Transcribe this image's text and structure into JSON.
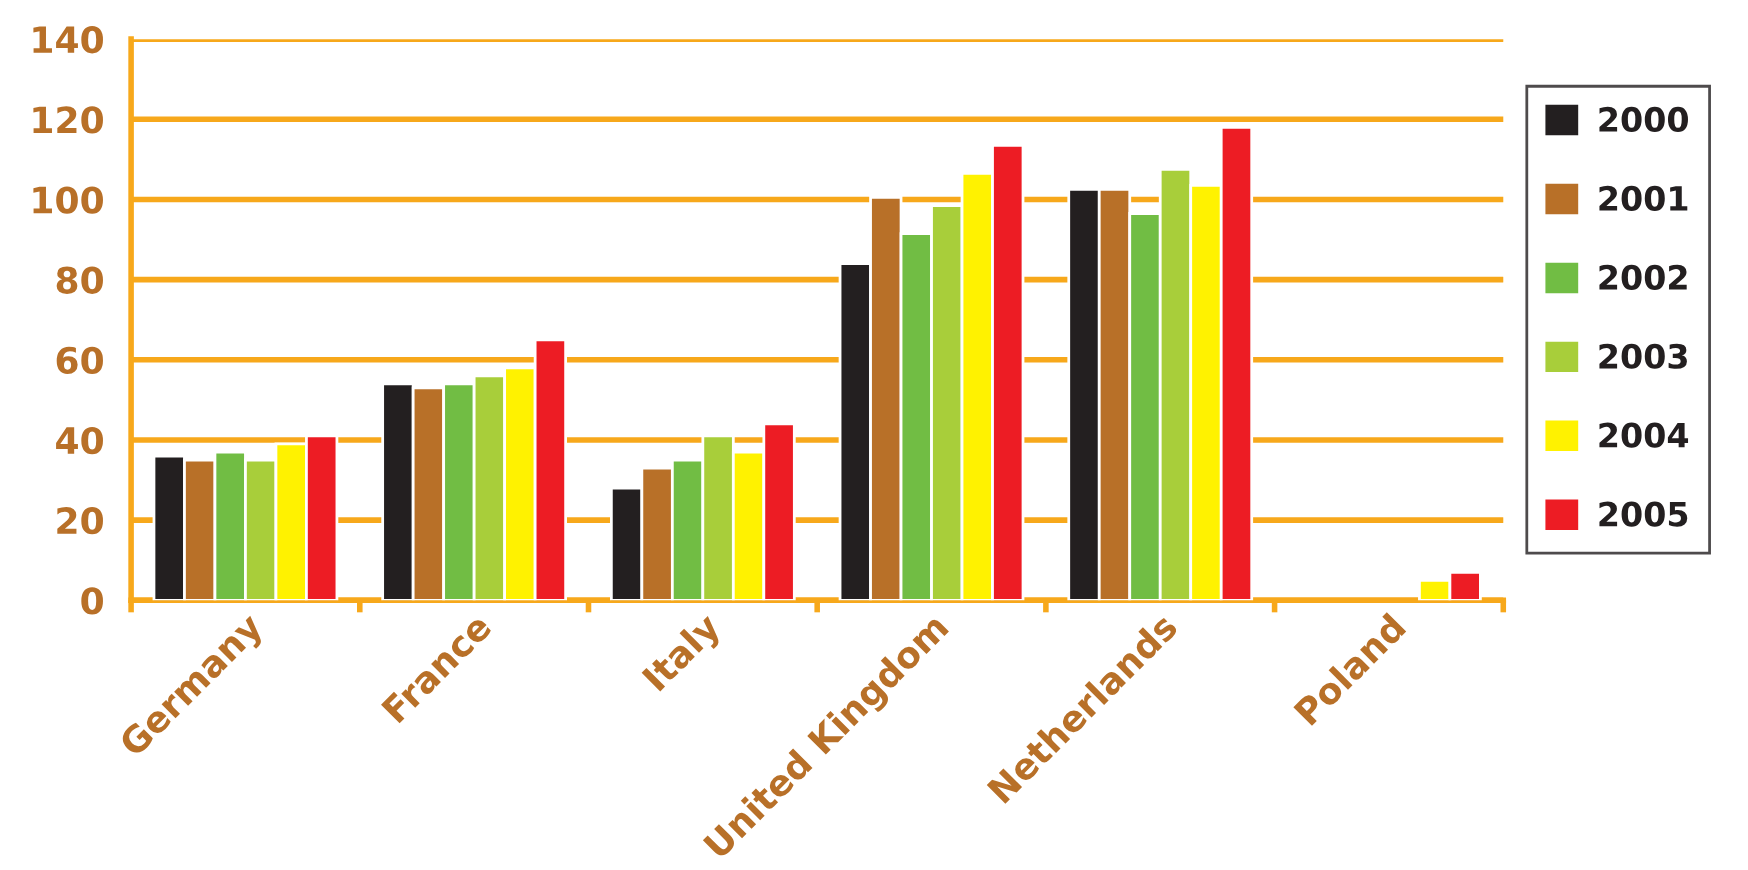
{
  "chart_data": {
    "type": "bar",
    "categories": [
      "Germany",
      "France",
      "Italy",
      "United Kingdom",
      "Netherlands",
      "Poland"
    ],
    "series": [
      {
        "name": "2000",
        "color": "#231f20",
        "values": [
          36,
          54,
          28,
          84,
          102.5,
          null
        ]
      },
      {
        "name": "2001",
        "color": "#b87028",
        "values": [
          35,
          53,
          33,
          100.5,
          102.5,
          null
        ]
      },
      {
        "name": "2002",
        "color": "#71bd44",
        "values": [
          37,
          54,
          35,
          91.5,
          96.5,
          null
        ]
      },
      {
        "name": "2003",
        "color": "#a8ce3a",
        "values": [
          35,
          56,
          41,
          98.5,
          107.5,
          null
        ]
      },
      {
        "name": "2004",
        "color": "#fff200",
        "values": [
          39,
          58,
          37,
          106.5,
          103.5,
          5
        ]
      },
      {
        "name": "2005",
        "color": "#ed1c24",
        "values": [
          41,
          65,
          44,
          113.5,
          118,
          7
        ]
      }
    ],
    "ylim": [
      0,
      140
    ],
    "yticks": [
      0,
      20,
      40,
      60,
      80,
      100,
      120,
      140
    ],
    "grid": "y",
    "legend": "right"
  }
}
